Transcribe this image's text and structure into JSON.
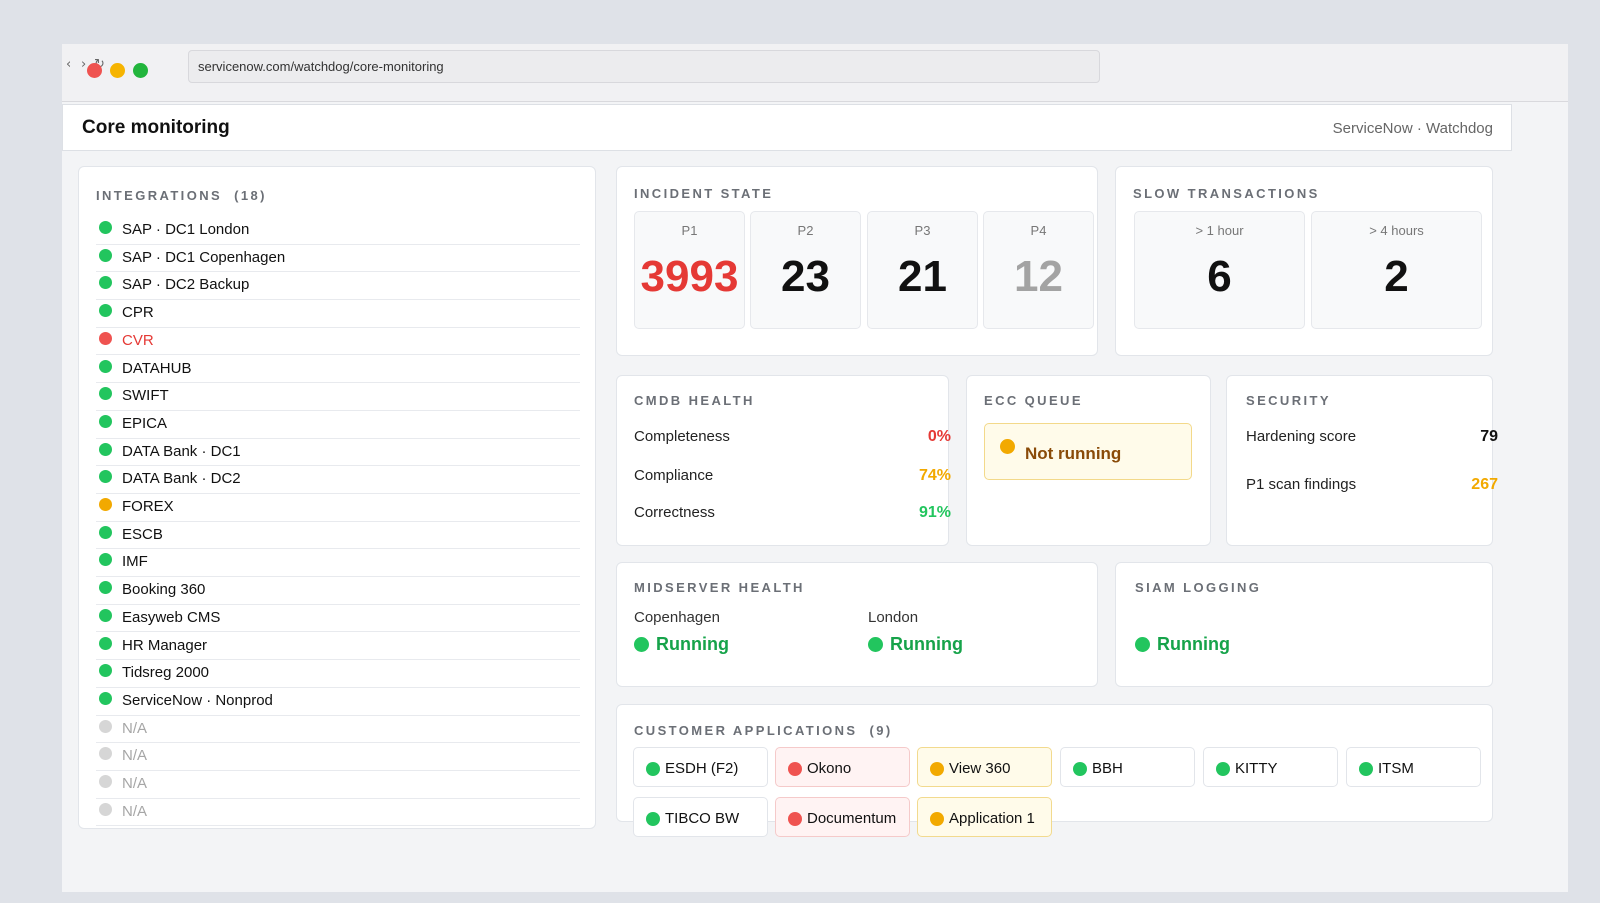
{
  "browser": {
    "back_glyph": "‹",
    "forward_glyph": "›",
    "reload_glyph": "↻",
    "url": "servicenow.com/watchdog/core-monitoring"
  },
  "app": {
    "title": "Core monitoring",
    "brand": "ServiceNow · Watchdog"
  },
  "colors": {
    "ok": "#22c55e",
    "error": "#ef5350",
    "warning": "#f2a900",
    "inactive": "#d6d6d6"
  },
  "integrations": {
    "title": "INTEGRATIONS",
    "count": "(18)",
    "items": [
      {
        "label": "SAP · DC1 London",
        "status": "ok"
      },
      {
        "label": "SAP · DC1 Copenhagen",
        "status": "ok"
      },
      {
        "label": "SAP · DC2 Backup",
        "status": "ok"
      },
      {
        "label": "CPR",
        "status": "ok"
      },
      {
        "label": "CVR",
        "status": "error"
      },
      {
        "label": "DATAHUB",
        "status": "ok"
      },
      {
        "label": "SWIFT",
        "status": "ok"
      },
      {
        "label": "EPICA",
        "status": "ok"
      },
      {
        "label": "DATA Bank · DC1",
        "status": "ok"
      },
      {
        "label": "DATA Bank · DC2",
        "status": "ok"
      },
      {
        "label": "FOREX",
        "status": "warning"
      },
      {
        "label": "ESCB",
        "status": "ok"
      },
      {
        "label": "IMF",
        "status": "ok"
      },
      {
        "label": "Booking 360",
        "status": "ok"
      },
      {
        "label": "Easyweb CMS",
        "status": "ok"
      },
      {
        "label": "HR Manager",
        "status": "ok"
      },
      {
        "label": "Tidsreg 2000",
        "status": "ok"
      },
      {
        "label": "ServiceNow · Nonprod",
        "status": "ok"
      },
      {
        "label": "N/A",
        "status": "inactive"
      },
      {
        "label": "N/A",
        "status": "inactive"
      },
      {
        "label": "N/A",
        "status": "inactive"
      },
      {
        "label": "N/A",
        "status": "inactive"
      }
    ]
  },
  "incident_state": {
    "title": "INCIDENT STATE",
    "tiles": [
      {
        "label": "P1",
        "value": "3993",
        "color": "#e53935"
      },
      {
        "label": "P2",
        "value": "23",
        "color": "#111111"
      },
      {
        "label": "P3",
        "value": "21",
        "color": "#111111"
      },
      {
        "label": "P4",
        "value": "12",
        "color": "#a3a3a3"
      }
    ]
  },
  "slow_transactions": {
    "title": "SLOW TRANSACTIONS",
    "tiles": [
      {
        "label": "> 1 hour",
        "value": "6"
      },
      {
        "label": "> 4 hours",
        "value": "2"
      }
    ]
  },
  "cmdb_health": {
    "title": "CMDB HEALTH",
    "rows": [
      {
        "label": "Completeness",
        "value": "0%",
        "color": "#e53935"
      },
      {
        "label": "Compliance",
        "value": "74%",
        "color": "#f2a900"
      },
      {
        "label": "Correctness",
        "value": "91%",
        "color": "#22c55e"
      }
    ]
  },
  "ecc_queue": {
    "title": "ECC QUEUE",
    "status_text": "Not running"
  },
  "security": {
    "title": "SECURITY",
    "rows": [
      {
        "label": "Hardening score",
        "value": "79",
        "color": "#111111"
      },
      {
        "label": "P1 scan findings",
        "value": "267",
        "color": "#f2a900"
      }
    ]
  },
  "midserver_health": {
    "title": "MIDSERVER HEALTH",
    "servers": [
      {
        "label": "Copenhagen",
        "status": "Running"
      },
      {
        "label": "London",
        "status": "Running"
      }
    ]
  },
  "siam_logging": {
    "title": "SIAM LOGGING",
    "status": "Running"
  },
  "customer_applications": {
    "title": "CUSTOMER APPLICATIONS",
    "count": "(9)",
    "items": [
      {
        "label": "ESDH (F2)",
        "status": "ok"
      },
      {
        "label": "Okono",
        "status": "error"
      },
      {
        "label": "View 360",
        "status": "warning"
      },
      {
        "label": "BBH",
        "status": "ok"
      },
      {
        "label": "KITTY",
        "status": "ok"
      },
      {
        "label": "ITSM",
        "status": "ok"
      },
      {
        "label": "TIBCO BW",
        "status": "ok"
      },
      {
        "label": "Documentum",
        "status": "error"
      },
      {
        "label": "Application 1",
        "status": "warning"
      }
    ]
  }
}
